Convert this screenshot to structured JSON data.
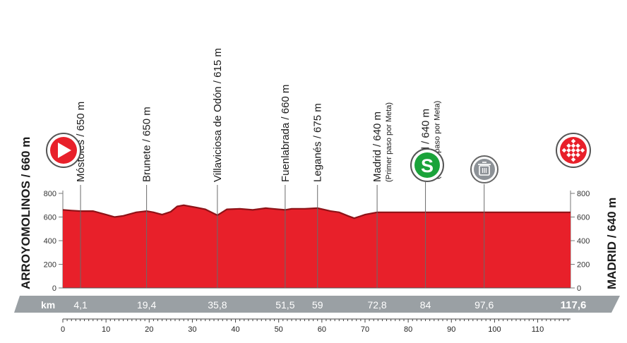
{
  "start_label": "ARROYOMOLINOS / 660 m",
  "finish_label": "MADRID / 640 m",
  "km_label": "km",
  "colors": {
    "profile": "#e8202a",
    "band": "#9aa0a4",
    "band_text": "#ffffff",
    "sprint": "#1aa33a"
  },
  "icons": {
    "start": "start-arrow-icon",
    "finish": "finish-checkered-icon",
    "sprint": "sprint-s-icon",
    "waste": "waste-bin-icon"
  },
  "chart_data": {
    "type": "area",
    "title": "",
    "xlabel": "",
    "ylabel": "",
    "xlim": [
      0,
      117.6
    ],
    "ylim": [
      0,
      800
    ],
    "y_ticks": [
      "0",
      "200",
      "400",
      "600",
      "800"
    ],
    "x_ticks": [
      "0",
      "10",
      "20",
      "30",
      "40",
      "50",
      "60",
      "70",
      "80",
      "90",
      "100",
      "110"
    ],
    "profile": {
      "x": [
        0,
        2,
        4.1,
        7,
        10,
        12,
        14,
        17,
        19.4,
        21,
        23,
        25,
        26.5,
        28,
        31,
        33,
        35.8,
        38,
        41,
        44,
        47,
        50,
        51.5,
        53,
        56,
        59,
        62,
        64,
        66,
        67.5,
        70,
        72.8,
        78,
        84,
        90,
        97.6,
        105,
        112,
        117.6
      ],
      "y": [
        660,
        655,
        650,
        650,
        620,
        600,
        610,
        640,
        650,
        640,
        620,
        645,
        690,
        700,
        680,
        665,
        615,
        665,
        670,
        660,
        675,
        665,
        660,
        670,
        670,
        675,
        650,
        640,
        610,
        590,
        620,
        640,
        640,
        640,
        640,
        640,
        640,
        640,
        640
      ]
    },
    "points": [
      {
        "km": "4,1",
        "x": 4.1,
        "name": "Móstoles / 650 m",
        "note": ""
      },
      {
        "km": "19,4",
        "x": 19.4,
        "name": "Brunete / 650 m",
        "note": ""
      },
      {
        "km": "35,8",
        "x": 35.8,
        "name": "Villaviciosa de Odón / 615 m",
        "note": ""
      },
      {
        "km": "51,5",
        "x": 51.5,
        "name": "Fuenlabrada / 660 m",
        "note": ""
      },
      {
        "km": "59",
        "x": 59,
        "name": "Leganés / 675 m",
        "note": ""
      },
      {
        "km": "72,8",
        "x": 72.8,
        "name": "Madrid / 640 m",
        "note": "(Primer paso por Meta)"
      },
      {
        "km": "84",
        "x": 84,
        "name": "Madrid / 640 m",
        "note": "(Tercer paso por Meta)"
      },
      {
        "km": "97,6",
        "x": 97.6,
        "name": "",
        "note": ""
      },
      {
        "km": "117,6",
        "x": 117.6,
        "name": "",
        "note": ""
      }
    ]
  }
}
